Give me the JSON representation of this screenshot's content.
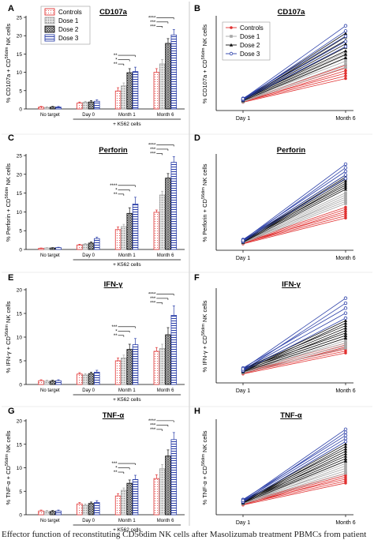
{
  "caption": "Effector function of reconstituting CD56dim NK cells after Masolizumab treatment PBMCs from patient",
  "chart_data": [
    {
      "panel": "A",
      "type": "bar",
      "title": "CD107a",
      "ylabel_main": "% CD107a + CD",
      "ylabel_sup": "56dim",
      "ylabel_tail": " NK cells",
      "ylim": [
        0,
        25
      ],
      "yticks": [
        0,
        5,
        10,
        15,
        20,
        25
      ],
      "categories": [
        "No target",
        "Day 0",
        "Month 1",
        "Month 6"
      ],
      "group_label": "+ K562 cells",
      "series": [
        {
          "name": "Controls",
          "values": [
            0.5,
            1.6,
            4.9,
            10.0
          ],
          "errors": [
            0.2,
            0.3,
            0.9,
            1.0
          ]
        },
        {
          "name": "Dose 1",
          "values": [
            0.4,
            1.8,
            6.3,
            12.3
          ],
          "errors": [
            0.2,
            0.3,
            0.8,
            1.2
          ]
        },
        {
          "name": "Dose 2",
          "values": [
            0.5,
            1.9,
            9.9,
            17.9
          ],
          "errors": [
            0.2,
            0.4,
            1.1,
            1.3
          ]
        },
        {
          "name": "Dose 3",
          "values": [
            0.5,
            2.1,
            10.2,
            20.2
          ],
          "errors": [
            0.2,
            0.4,
            1.2,
            1.5
          ]
        }
      ],
      "sig": [
        {
          "from": 2,
          "to": [
            1,
            2,
            3
          ],
          "labels": [
            "**",
            "*",
            "**"
          ]
        },
        {
          "from": 3,
          "to": [
            1,
            2,
            3
          ],
          "labels": [
            "***",
            "***",
            "****"
          ]
        }
      ]
    },
    {
      "panel": "B",
      "type": "line",
      "title": "CD107a",
      "ylabel_main": "% CD107a + CD",
      "ylabel_sup": "56dim",
      "ylabel_tail": " NK cells",
      "x": [
        "Day 1",
        "Month 6"
      ],
      "series": [
        {
          "name": "Controls",
          "start": [
            2.2,
            2.6
          ],
          "end": [
            8.5,
            12.0
          ],
          "n": 6
        },
        {
          "name": "Dose 1",
          "start": [
            2.3,
            2.8
          ],
          "end": [
            11.5,
            15.5
          ],
          "n": 6
        },
        {
          "name": "Dose 2",
          "start": [
            2.6,
            3.2
          ],
          "end": [
            14.0,
            20.5
          ],
          "n": 8
        },
        {
          "name": "Dose 3",
          "start": [
            2.8,
            3.4
          ],
          "end": [
            17.0,
            22.5
          ],
          "n": 5
        }
      ]
    },
    {
      "panel": "C",
      "type": "bar",
      "title": "Perforin",
      "ylabel_main": "% Perforin + CD",
      "ylabel_sup": "56dim",
      "ylabel_tail": " NK cells",
      "ylim": [
        0,
        25
      ],
      "yticks": [
        0,
        5,
        10,
        15,
        20,
        25
      ],
      "categories": [
        "No target",
        "Day 0",
        "Month 1",
        "Month 6"
      ],
      "group_label": "+ K562 cells",
      "series": [
        {
          "name": "Controls",
          "values": [
            0.3,
            1.2,
            5.3,
            9.9
          ],
          "errors": [
            0.1,
            0.2,
            0.7,
            0.6
          ]
        },
        {
          "name": "Dose 1",
          "values": [
            0.4,
            1.4,
            6.1,
            14.5
          ],
          "errors": [
            0.1,
            0.2,
            0.6,
            1.0
          ]
        },
        {
          "name": "Dose 2",
          "values": [
            0.4,
            1.7,
            9.6,
            19.0
          ],
          "errors": [
            0.1,
            0.3,
            1.5,
            1.2
          ]
        },
        {
          "name": "Dose 3",
          "values": [
            0.5,
            2.9,
            12.1,
            23.2
          ],
          "errors": [
            0.1,
            0.4,
            1.8,
            1.5
          ]
        }
      ],
      "sig": [
        {
          "from": 2,
          "to": [
            1,
            2,
            3
          ],
          "labels": [
            "**",
            "*",
            "****"
          ]
        },
        {
          "from": 3,
          "to": [
            1,
            2,
            3
          ],
          "labels": [
            "***",
            "***",
            "****"
          ]
        }
      ]
    },
    {
      "panel": "D",
      "type": "line",
      "title": "Perforin",
      "ylabel_main": "% Perforin + CD",
      "ylabel_sup": "56dim",
      "ylabel_tail": " NK cells",
      "x": [
        "Day 1",
        "Month 6"
      ],
      "series": [
        {
          "name": "Controls",
          "start": [
            1.8,
            2.4
          ],
          "end": [
            9.0,
            12.0
          ],
          "n": 6
        },
        {
          "name": "Dose 1",
          "start": [
            2.0,
            2.6
          ],
          "end": [
            13.0,
            16.0
          ],
          "n": 6
        },
        {
          "name": "Dose 2",
          "start": [
            2.2,
            3.0
          ],
          "end": [
            17.0,
            21.0
          ],
          "n": 8
        },
        {
          "name": "Dose 3",
          "start": [
            2.4,
            3.2
          ],
          "end": [
            20.0,
            24.0
          ],
          "n": 5
        }
      ]
    },
    {
      "panel": "E",
      "type": "bar",
      "title": "IFN-γ",
      "ylabel_main": "% IFN-γ + CD",
      "ylabel_sup": "56dim",
      "ylabel_tail": " NK cells",
      "ylim": [
        0,
        20
      ],
      "yticks": [
        0,
        5,
        10,
        15,
        20
      ],
      "categories": [
        "No target",
        "Day 0",
        "Month 1",
        "Month 6"
      ],
      "group_label": "+ K562 cells",
      "series": [
        {
          "name": "Controls",
          "values": [
            0.8,
            2.2,
            5.0,
            7.0
          ],
          "errors": [
            0.2,
            0.3,
            0.6,
            0.8
          ]
        },
        {
          "name": "Dose 1",
          "values": [
            0.7,
            2.0,
            5.6,
            7.6
          ],
          "errors": [
            0.2,
            0.3,
            0.6,
            0.9
          ]
        },
        {
          "name": "Dose 2",
          "values": [
            0.7,
            2.3,
            7.4,
            10.5
          ],
          "errors": [
            0.2,
            0.3,
            1.1,
            1.5
          ]
        },
        {
          "name": "Dose 3",
          "values": [
            0.8,
            2.6,
            8.4,
            14.6
          ],
          "errors": [
            0.2,
            0.4,
            1.3,
            2.0
          ]
        }
      ],
      "sig": [
        {
          "from": 2,
          "to": [
            1,
            2,
            3
          ],
          "labels": [
            "**",
            "*",
            "***"
          ]
        },
        {
          "from": 3,
          "to": [
            1,
            2,
            3
          ],
          "labels": [
            "***",
            "***",
            "****"
          ]
        }
      ]
    },
    {
      "panel": "F",
      "type": "line",
      "title": "IFN-γ",
      "ylabel_main": "% IFN-γ + CD",
      "ylabel_sup": "56dim",
      "ylabel_tail": " NK cells",
      "x": [
        "Day 1",
        "Month 6"
      ],
      "series": [
        {
          "name": "Controls",
          "start": [
            1.8,
            2.4
          ],
          "end": [
            6.0,
            8.0
          ],
          "n": 6
        },
        {
          "name": "Dose 1",
          "start": [
            2.0,
            2.6
          ],
          "end": [
            7.0,
            9.5
          ],
          "n": 6
        },
        {
          "name": "Dose 2",
          "start": [
            2.2,
            3.0
          ],
          "end": [
            9.0,
            12.5
          ],
          "n": 8
        },
        {
          "name": "Dose 3",
          "start": [
            2.4,
            3.2
          ],
          "end": [
            13.0,
            17.0
          ],
          "n": 5
        }
      ]
    },
    {
      "panel": "G",
      "type": "bar",
      "title": "TNF-α",
      "ylabel_main": "% TNF-α + CD",
      "ylabel_sup": "56dim",
      "ylabel_tail": " NK cells",
      "ylim": [
        0,
        20
      ],
      "yticks": [
        0,
        5,
        10,
        15,
        20
      ],
      "categories": [
        "No target",
        "Day 0",
        "Month 1",
        "Month 6"
      ],
      "group_label": "+ K562 cells",
      "series": [
        {
          "name": "Controls",
          "values": [
            0.8,
            2.3,
            4.0,
            7.7
          ],
          "errors": [
            0.2,
            0.3,
            0.5,
            0.8
          ]
        },
        {
          "name": "Dose 1",
          "values": [
            0.7,
            2.0,
            5.2,
            9.8
          ],
          "errors": [
            0.2,
            0.3,
            0.5,
            0.9
          ]
        },
        {
          "name": "Dose 2",
          "values": [
            0.7,
            2.4,
            6.7,
            12.5
          ],
          "errors": [
            0.2,
            0.3,
            0.7,
            1.3
          ]
        },
        {
          "name": "Dose 3",
          "values": [
            0.8,
            2.6,
            7.5,
            16.0
          ],
          "errors": [
            0.2,
            0.4,
            0.9,
            1.5
          ]
        }
      ],
      "sig": [
        {
          "from": 2,
          "to": [
            1,
            2,
            3
          ],
          "labels": [
            "**",
            "*",
            "***"
          ]
        },
        {
          "from": 3,
          "to": [
            1,
            2,
            3
          ],
          "labels": [
            "***",
            "***",
            "****"
          ]
        }
      ]
    },
    {
      "panel": "H",
      "type": "line",
      "title": "TNF-α",
      "ylabel_main": "% TNF-α + CD",
      "ylabel_sup": "56dim",
      "ylabel_tail": " NK cells",
      "x": [
        "Day 1",
        "Month 6"
      ],
      "series": [
        {
          "name": "Controls",
          "start": [
            2.0,
            2.5
          ],
          "end": [
            6.5,
            8.5
          ],
          "n": 6
        },
        {
          "name": "Dose 1",
          "start": [
            2.2,
            2.7
          ],
          "end": [
            8.5,
            11.0
          ],
          "n": 6
        },
        {
          "name": "Dose 2",
          "start": [
            2.4,
            3.0
          ],
          "end": [
            11.0,
            14.5
          ],
          "n": 8
        },
        {
          "name": "Dose 3",
          "start": [
            2.6,
            3.3
          ],
          "end": [
            15.0,
            17.5
          ],
          "n": 5
        }
      ]
    }
  ],
  "style": {
    "colors": {
      "Controls": "#e03030",
      "Dose 1": "#a6a6a6",
      "Dose 2": "#111111",
      "Dose 3": "#2a3ea8"
    },
    "markers": {
      "Controls": "circle-filled",
      "Dose 1": "square-filled",
      "Dose 2": "triangle-filled",
      "Dose 3": "circle-open"
    },
    "fills": {
      "Controls": "dots",
      "Dose 1": "dense-dots",
      "Dose 2": "crosshatch",
      "Dose 3": "horizontal-lines"
    }
  }
}
